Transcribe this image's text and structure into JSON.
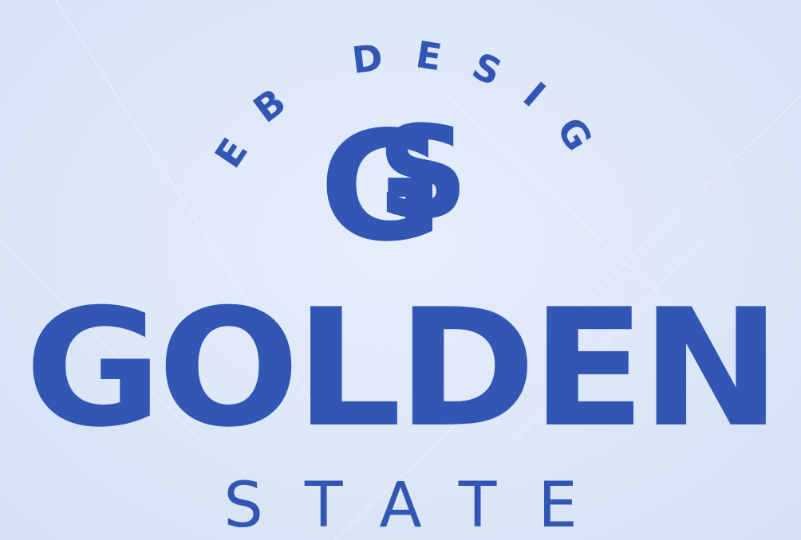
{
  "logo": {
    "arc_text": "WEB DESIGN",
    "monogram": "GS",
    "title": "GOLDEN",
    "subtitle": "STATE"
  },
  "colors": {
    "background": "#dde8f9",
    "brand": "#3256b4"
  }
}
